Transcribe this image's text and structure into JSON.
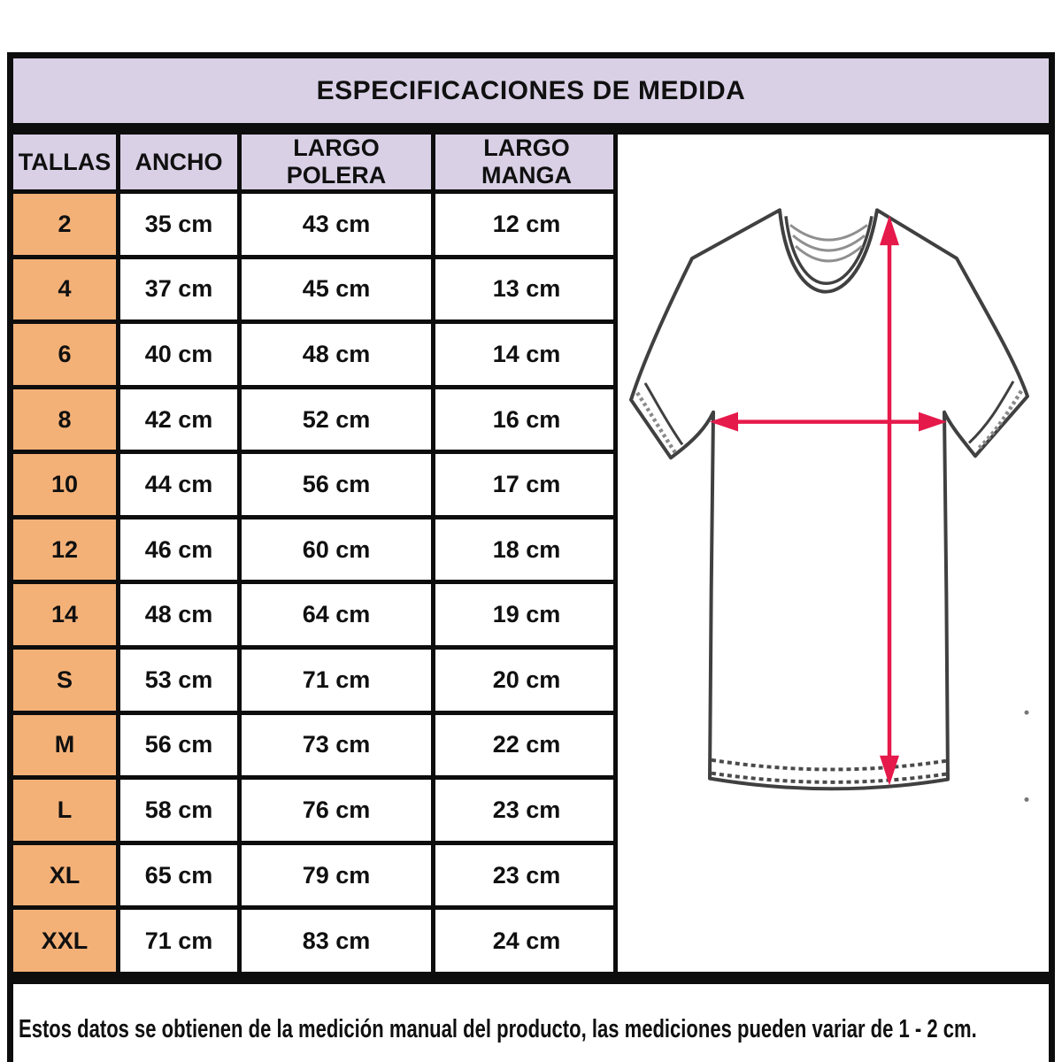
{
  "title": "ESPECIFICACIONES DE MEDIDA",
  "table": {
    "columns": [
      "TALLAS",
      "ANCHO",
      "LARGO POLERA",
      "LARGO MANGA"
    ],
    "rows": [
      {
        "talla": "2",
        "ancho": "35 cm",
        "largo_polera": "43 cm",
        "largo_manga": "12 cm"
      },
      {
        "talla": "4",
        "ancho": "37 cm",
        "largo_polera": "45 cm",
        "largo_manga": "13 cm"
      },
      {
        "talla": "6",
        "ancho": "40 cm",
        "largo_polera": "48 cm",
        "largo_manga": "14 cm"
      },
      {
        "talla": "8",
        "ancho": "42 cm",
        "largo_polera": "52 cm",
        "largo_manga": "16 cm"
      },
      {
        "talla": "10",
        "ancho": "44 cm",
        "largo_polera": "56 cm",
        "largo_manga": "17 cm"
      },
      {
        "talla": "12",
        "ancho": "46 cm",
        "largo_polera": "60 cm",
        "largo_manga": "18 cm"
      },
      {
        "talla": "14",
        "ancho": "48 cm",
        "largo_polera": "64 cm",
        "largo_manga": "19 cm"
      },
      {
        "talla": "S",
        "ancho": "53 cm",
        "largo_polera": "71 cm",
        "largo_manga": "20 cm"
      },
      {
        "talla": "M",
        "ancho": "56 cm",
        "largo_polera": "73 cm",
        "largo_manga": "22 cm"
      },
      {
        "talla": "L",
        "ancho": "58 cm",
        "largo_polera": "76 cm",
        "largo_manga": "23 cm"
      },
      {
        "talla": "XL",
        "ancho": "65 cm",
        "largo_polera": "79 cm",
        "largo_manga": "23 cm"
      },
      {
        "talla": "XXL",
        "ancho": "71 cm",
        "largo_polera": "83 cm",
        "largo_manga": "24 cm"
      }
    ]
  },
  "note": "Estos datos se obtienen de la medición manual del producto, las mediciones pueden variar de 1 - 2 cm.",
  "diagram": {
    "description": "t-shirt line drawing with width arrow (ancho) and length arrow (largo polera)"
  },
  "colors": {
    "header_bg": "#d9d0e6",
    "size_column_bg": "#f4b177",
    "border": "#0d0d0d",
    "arrow": "#e6194b",
    "shirt_outline": "#404040"
  }
}
